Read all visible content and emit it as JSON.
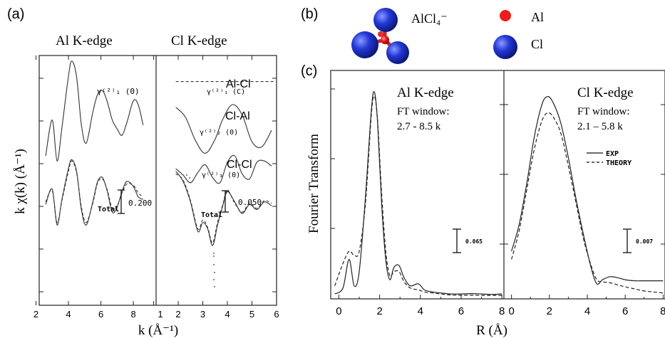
{
  "chart_data": [
    {
      "panel": "(a)",
      "type": "line",
      "ylabel": "k χ(k) (Å⁻¹)",
      "xlabel": "k (Å⁻¹)",
      "subplots": [
        {
          "title": "Al K-edge",
          "xlim": [
            2.2,
            9.4
          ],
          "xticks": [
            "2",
            "4",
            "6",
            "8"
          ],
          "paths": [
            {
              "name": "γ(2)1 (0)",
              "style": "solid",
              "x": [
                2.6,
                3.0,
                3.3,
                3.6,
                4.0,
                4.2,
                4.5,
                4.8,
                5.1,
                5.5,
                5.8,
                6.1,
                6.4,
                6.7,
                7.0,
                7.3,
                7.6,
                8.0,
                8.3,
                8.6
              ],
              "y": [
                0.5,
                1.9,
                0.3,
                1.6,
                3.6,
                4.2,
                3.6,
                1.7,
                1.0,
                2.2,
                2.9,
                3.05,
                2.6,
                1.9,
                1.55,
                1.3,
                1.8,
                2.65,
                2.5,
                1.7
              ]
            },
            {
              "name": "Total",
              "style": "solid",
              "x": [
                2.6,
                3.0,
                3.3,
                3.6,
                4.0,
                4.2,
                4.5,
                4.8,
                5.1,
                5.5,
                5.8,
                6.1,
                6.4,
                6.7,
                7.0,
                7.3,
                7.6,
                8.0,
                8.3,
                8.6
              ],
              "y": [
                -1.4,
                -0.8,
                -2.2,
                -1.2,
                0.0,
                0.35,
                -0.1,
                -1.6,
                -2.2,
                -1.3,
                -0.5,
                -0.35,
                -0.9,
                -1.7,
                -1.5,
                -0.9,
                -0.5,
                -0.7,
                -1.1,
                -1.2
              ]
            },
            {
              "name": "Total-theory",
              "style": "dashed",
              "x": [
                2.6,
                3.0,
                3.3,
                3.6,
                4.0,
                4.2,
                4.5,
                4.8,
                5.1,
                5.5,
                5.8,
                6.1,
                6.4,
                6.7,
                7.0,
                7.3,
                7.6,
                8.0,
                8.3,
                8.6
              ],
              "y": [
                -1.3,
                -0.85,
                -2.1,
                -1.25,
                -0.1,
                0.3,
                -0.15,
                -1.5,
                -2.1,
                -1.35,
                -0.55,
                -0.4,
                -0.85,
                -1.55,
                -1.45,
                -0.95,
                -0.6,
                -0.65,
                -0.95,
                -1.1
              ]
            }
          ],
          "labels": {
            "path": "γ⁽²⁾₁ (0)",
            "total": "Total",
            "scale": "0.200"
          }
        },
        {
          "title": "Cl K-edge",
          "xlim": [
            1.1,
            6.0
          ],
          "xticks": [
            "1",
            "2",
            "3",
            "4",
            "5",
            "6"
          ],
          "paths": [
            {
              "name": "γ(2)1 (C)",
              "style": "dashed",
              "x": [
                1.9,
                5.9
              ],
              "y": [
                3.4,
                3.4
              ]
            },
            {
              "name": "γ(2)2 (0)",
              "style": "solid",
              "x": [
                1.9,
                2.3,
                2.7,
                3.1,
                3.5,
                3.8,
                4.2,
                4.6,
                5.0,
                5.4,
                5.8
              ],
              "y": [
                2.4,
                2.0,
                1.1,
                0.6,
                1.15,
                1.9,
                2.5,
                2.1,
                1.05,
                0.85,
                1.5
              ]
            },
            {
              "name": "γ(2)3 (0)",
              "style": "solid",
              "x": [
                1.9,
                2.2,
                2.5,
                2.8,
                3.1,
                3.4,
                3.7,
                4.0,
                4.3,
                4.6,
                4.9,
                5.2,
                5.5,
                5.8
              ],
              "y": [
                0.0,
                -0.25,
                -0.55,
                -0.15,
                0.15,
                -0.35,
                -0.55,
                0.25,
                0.5,
                -0.2,
                -0.4,
                0.25,
                0.3,
                0.1
              ]
            },
            {
              "name": "Total",
              "style": "solid",
              "x": [
                1.9,
                2.2,
                2.5,
                2.8,
                3.0,
                3.2,
                3.4,
                3.6,
                3.8,
                4.0,
                4.3,
                4.6,
                4.9,
                5.2,
                5.5,
                5.8
              ],
              "y": [
                -0.1,
                -0.5,
                -1.3,
                -2.45,
                -2.1,
                -2.35,
                -3.0,
                -2.2,
                -1.5,
                -0.9,
                -1.3,
                -1.75,
                -1.4,
                -1.6,
                -1.3,
                -1.45
              ]
            },
            {
              "name": "Total-theory",
              "style": "dashed",
              "x": [
                1.9,
                2.2,
                2.5,
                2.8,
                3.0,
                3.2,
                3.4,
                3.6,
                3.8,
                4.0,
                4.3,
                4.6,
                4.9,
                5.2,
                5.5,
                5.8
              ],
              "y": [
                -0.2,
                -0.45,
                -1.25,
                -2.35,
                -2.0,
                -2.3,
                -2.9,
                -2.1,
                -1.45,
                -0.85,
                -1.35,
                -1.7,
                -1.35,
                -1.55,
                -1.25,
                -1.35
              ]
            }
          ],
          "labels": {
            "pair1": "Al-Cl",
            "pair2": "Cl-Al",
            "pair3": "Cl-Cl",
            "path1": "γ⁽²⁾₁ (C)",
            "path2": "γ⁽²⁾₂ (0)",
            "path3": "γ⁽²⁾₃ (0)",
            "total": "Total",
            "scale": "0.050"
          }
        }
      ]
    },
    {
      "panel": "(b)",
      "type": "diagram",
      "molecule": "AlCl₄⁻",
      "legend": [
        {
          "label": "Al",
          "color": "#ee1c1c"
        },
        {
          "label": "Cl",
          "color": "#1a2fc8"
        }
      ]
    },
    {
      "panel": "(c)",
      "type": "line",
      "ylabel": "Fourier Transform",
      "xlabel": "R (Å)",
      "legend": [
        {
          "label": "EXP",
          "style": "solid"
        },
        {
          "label": "THEORY",
          "style": "dashed"
        }
      ],
      "legend_placement": "right",
      "subplots": [
        {
          "title": "Al K-edge",
          "window_label": "FT window:",
          "window": "2.7 - 8.5 k",
          "xlim": [
            -0.4,
            8.1
          ],
          "ylim": [
            0,
            1
          ],
          "xticks": [
            "0",
            "2",
            "4",
            "6",
            "8"
          ],
          "scale": "0.065",
          "series": [
            {
              "name": "EXP",
              "style": "solid",
              "x": [
                -0.2,
                0.2,
                0.5,
                0.75,
                1.0,
                1.3,
                1.6,
                1.75,
                1.9,
                2.1,
                2.3,
                2.5,
                2.7,
                2.95,
                3.2,
                3.5,
                3.9,
                4.2,
                4.6,
                5.0,
                5.5,
                6.0,
                6.5,
                7.0,
                7.5,
                8.0
              ],
              "y": [
                0.01,
                0.04,
                0.18,
                0.05,
                0.12,
                0.48,
                0.92,
                1.0,
                0.85,
                0.45,
                0.18,
                0.08,
                0.14,
                0.15,
                0.09,
                0.05,
                0.06,
                0.03,
                0.02,
                0.015,
                0.01,
                0.01,
                0.012,
                0.01,
                0.008,
                0.01
              ]
            },
            {
              "name": "THEORY",
              "style": "dashed",
              "x": [
                -0.2,
                0.2,
                0.5,
                0.75,
                1.0,
                1.3,
                1.6,
                1.75,
                1.9,
                2.1,
                2.3,
                2.5,
                2.7,
                2.95,
                3.2,
                3.5,
                3.9,
                4.2,
                4.6,
                5.0,
                5.5,
                6.0,
                6.5,
                7.0,
                7.5,
                8.0
              ],
              "y": [
                0.05,
                0.16,
                0.22,
                0.2,
                0.22,
                0.45,
                0.9,
                0.98,
                0.86,
                0.5,
                0.22,
                0.1,
                0.12,
                0.12,
                0.07,
                0.04,
                0.03,
                0.02,
                0.015,
                0.01,
                0.005,
                0.004,
                0.004,
                0.003,
                0.003,
                0.003
              ]
            }
          ]
        },
        {
          "title": "Cl K-edge",
          "window_label": "FT window:",
          "window": "2.1 – 5.8 k",
          "xlim": [
            -0.4,
            8.1
          ],
          "ylim": [
            0,
            1
          ],
          "xticks": [
            "0",
            "2",
            "4",
            "6",
            "8"
          ],
          "scale": "0.007",
          "series": [
            {
              "name": "EXP",
              "style": "solid",
              "x": [
                0.0,
                0.4,
                0.8,
                1.2,
                1.6,
                1.9,
                2.2,
                2.6,
                3.0,
                3.4,
                3.8,
                4.2,
                4.5,
                4.8,
                5.2,
                5.6,
                6.0,
                6.5,
                7.0,
                7.5,
                8.0
              ],
              "y": [
                0.22,
                0.35,
                0.55,
                0.78,
                0.94,
                0.98,
                0.95,
                0.85,
                0.68,
                0.48,
                0.3,
                0.14,
                0.06,
                0.08,
                0.095,
                0.09,
                0.08,
                0.075,
                0.075,
                0.075,
                0.075
              ]
            },
            {
              "name": "THEORY",
              "style": "dashed",
              "x": [
                0.0,
                0.4,
                0.8,
                1.2,
                1.6,
                1.9,
                2.2,
                2.6,
                3.0,
                3.4,
                3.8,
                4.2,
                4.5,
                4.8,
                5.2,
                5.6,
                6.0,
                6.5,
                7.0,
                7.5,
                8.0
              ],
              "y": [
                0.18,
                0.32,
                0.52,
                0.72,
                0.86,
                0.9,
                0.88,
                0.8,
                0.64,
                0.46,
                0.28,
                0.15,
                0.08,
                0.07,
                0.065,
                0.055,
                0.045,
                0.035,
                0.025,
                0.02,
                0.015
              ]
            }
          ]
        }
      ]
    }
  ]
}
